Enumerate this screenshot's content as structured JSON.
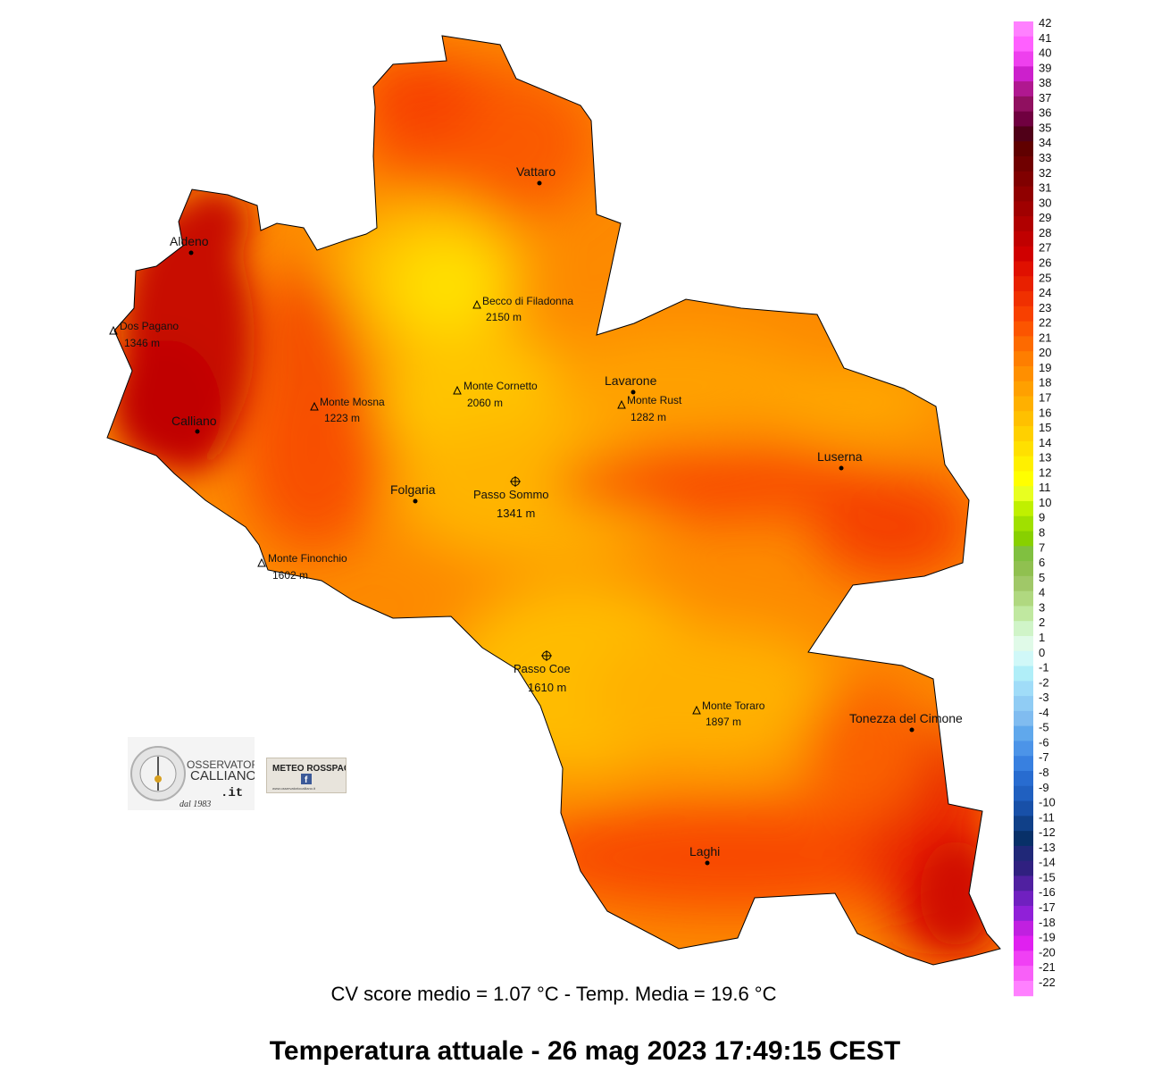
{
  "map": {
    "title": "Temperatura attuale  -  26 mag 2023 17:49:15  CEST",
    "stats": "CV score medio = 1.07 °C  -  Temp. Media = 19.6 °C",
    "towns": [
      {
        "id": "aldeno",
        "name": "Aldeno"
      },
      {
        "id": "vattaro",
        "name": "Vattaro"
      },
      {
        "id": "calliano",
        "name": "Calliano"
      },
      {
        "id": "lavarone",
        "name": "Lavarone"
      },
      {
        "id": "luserna",
        "name": "Luserna"
      },
      {
        "id": "folgaria",
        "name": "Folgaria"
      },
      {
        "id": "tonezza",
        "name": "Tonezza del Cimone"
      },
      {
        "id": "laghi",
        "name": "Laghi"
      }
    ],
    "peaks": [
      {
        "id": "becco",
        "name": "Becco di Filadonna",
        "elev": "2150 m"
      },
      {
        "id": "dospagano",
        "name": "Dos Pagano",
        "elev": "1346 m"
      },
      {
        "id": "cornetto",
        "name": "Monte Cornetto",
        "elev": "2060 m"
      },
      {
        "id": "mosna",
        "name": "Monte Mosna",
        "elev": "1223 m"
      },
      {
        "id": "rust",
        "name": "Monte Rust",
        "elev": "1282 m"
      },
      {
        "id": "finonchio",
        "name": "Monte Finonchio",
        "elev": "1602 m"
      },
      {
        "id": "toraro",
        "name": "Monte Toraro",
        "elev": "1897 m"
      }
    ],
    "passes": [
      {
        "id": "sommo",
        "name": "Passo Sommo",
        "elev": "1341 m"
      },
      {
        "id": "coe",
        "name": "Passo Coe",
        "elev": "1610 m"
      }
    ]
  },
  "legend": {
    "labels": [
      "42",
      "41",
      "40",
      "39",
      "38",
      "37",
      "36",
      "35",
      "34",
      "33",
      "32",
      "31",
      "30",
      "29",
      "28",
      "27",
      "26",
      "25",
      "24",
      "23",
      "22",
      "21",
      "20",
      "19",
      "18",
      "17",
      "16",
      "15",
      "14",
      "13",
      "12",
      "11",
      "10",
      "9",
      "8",
      "7",
      "6",
      "5",
      "4",
      "3",
      "2",
      "1",
      "0",
      "-1",
      "-2",
      "-3",
      "-4",
      "-5",
      "-6",
      "-7",
      "-8",
      "-9",
      "-10",
      "-11",
      "-12",
      "-13",
      "-14",
      "-15",
      "-16",
      "-17",
      "-18",
      "-19",
      "-20",
      "-21",
      "-22"
    ],
    "colors": [
      "#ff80ff",
      "#ff60ff",
      "#ee40ee",
      "#cc20cc",
      "#b01890",
      "#901060",
      "#700040",
      "#500018",
      "#600000",
      "#700000",
      "#800000",
      "#900000",
      "#a00000",
      "#b00000",
      "#c00000",
      "#d00000",
      "#e01000",
      "#e82000",
      "#f03000",
      "#f84000",
      "#fc5500",
      "#fd6a00",
      "#fe7e00",
      "#ff8f00",
      "#ffa000",
      "#ffb000",
      "#ffc000",
      "#ffd000",
      "#ffe000",
      "#fff000",
      "#ffff00",
      "#e8ff20",
      "#c0f000",
      "#a0e000",
      "#88d000",
      "#80c040",
      "#90c050",
      "#a0c868",
      "#b0d880",
      "#c0e8a0",
      "#d0f4c8",
      "#e0fae8",
      "#d0f8f8",
      "#b0eef8",
      "#a0dcf8",
      "#90ccf4",
      "#80bcf0",
      "#60a8ec",
      "#4c94e8",
      "#3880e0",
      "#286cd0",
      "#2060c0",
      "#1850a8",
      "#104088",
      "#083068",
      "#202878",
      "#302080",
      "#5020a0",
      "#7020c0",
      "#9020d8",
      "#c020e0",
      "#e020f0",
      "#f040f4",
      "#f860f8",
      "#ff80ff"
    ]
  },
  "logos": {
    "calliano_line1": "OSSERVATORIO",
    "calliano_line2": "CALLIANO",
    "calliano_suffix": ".it",
    "calliano_since": "dal 1983",
    "rosspach": "METEO ROSSPACH",
    "rosspach_small": "www.osservatoriocalliano.it"
  }
}
